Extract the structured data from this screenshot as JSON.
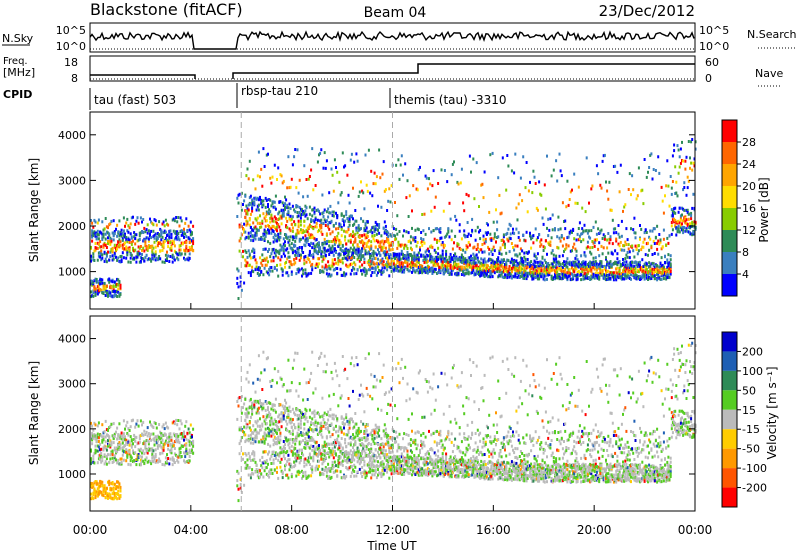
{
  "header": {
    "title": "Blackstone (fitACF)",
    "beam": "Beam 04",
    "date": "23/Dec/2012"
  },
  "top_panels": {
    "nsky_label": "N.Sky",
    "nsearch_label": "N.Search",
    "nsky_ticks": [
      "10^5",
      "10^0"
    ],
    "nsearch_ticks": [
      "10^5",
      "10^0"
    ],
    "freq_label_line1": "Freq.",
    "freq_label_line2": "[MHz]",
    "freq_ticks": [
      "18",
      "8"
    ],
    "nave_label": "Nave",
    "nave_ticks": [
      "60",
      "0"
    ],
    "cpid_label": "CPID"
  },
  "cpid_segments": [
    {
      "label": "tau (fast) 503",
      "start_hour": 0
    },
    {
      "label": "rbsp-tau 210",
      "start_hour": 6
    },
    {
      "label": "themis (tau) -3310",
      "start_hour": 12
    }
  ],
  "power_colorbar": {
    "label": "Power [dB]",
    "ticks": [
      "28",
      "24",
      "20",
      "16",
      "12",
      "8",
      "4"
    ],
    "colors": [
      "#ff0000",
      "#ff6600",
      "#ffa500",
      "#ffdd00",
      "#88cc00",
      "#2e8b57",
      "#3a7fbf",
      "#0000ff"
    ]
  },
  "velocity_colorbar": {
    "label": "Velocity [m s⁻¹]",
    "ticks": [
      "200",
      "100",
      "50",
      "15",
      "-15",
      "-50",
      "-100",
      "-200"
    ],
    "colors": [
      "#0000cc",
      "#1e5fb4",
      "#2e8b57",
      "#55cc22",
      "#bbbbbb",
      "#ffcc00",
      "#ff9900",
      "#ff5500",
      "#ff0000"
    ]
  },
  "chart_data": {
    "type": "heatmap",
    "panels": [
      {
        "name": "Power",
        "ylabel": "Slant Range [km]",
        "colorbar": "Power [dB]"
      },
      {
        "name": "Velocity",
        "ylabel": "Slant Range [km]",
        "colorbar": "Velocity [m s⁻¹]"
      }
    ],
    "xlabel": "Time UT",
    "xlim_hours": [
      0,
      24
    ],
    "x_ticks": [
      "00:00",
      "04:00",
      "08:00",
      "12:00",
      "16:00",
      "20:00",
      "00:00"
    ],
    "ylim": [
      180,
      4500
    ],
    "y_ticks": [
      1000,
      2000,
      3000,
      4000
    ],
    "y_tick_labels": [
      "1000",
      "2000",
      "3000",
      "4000"
    ],
    "data_gap_hours": [
      4.05,
      5.8
    ],
    "mode_change_hours": [
      6,
      12
    ]
  }
}
